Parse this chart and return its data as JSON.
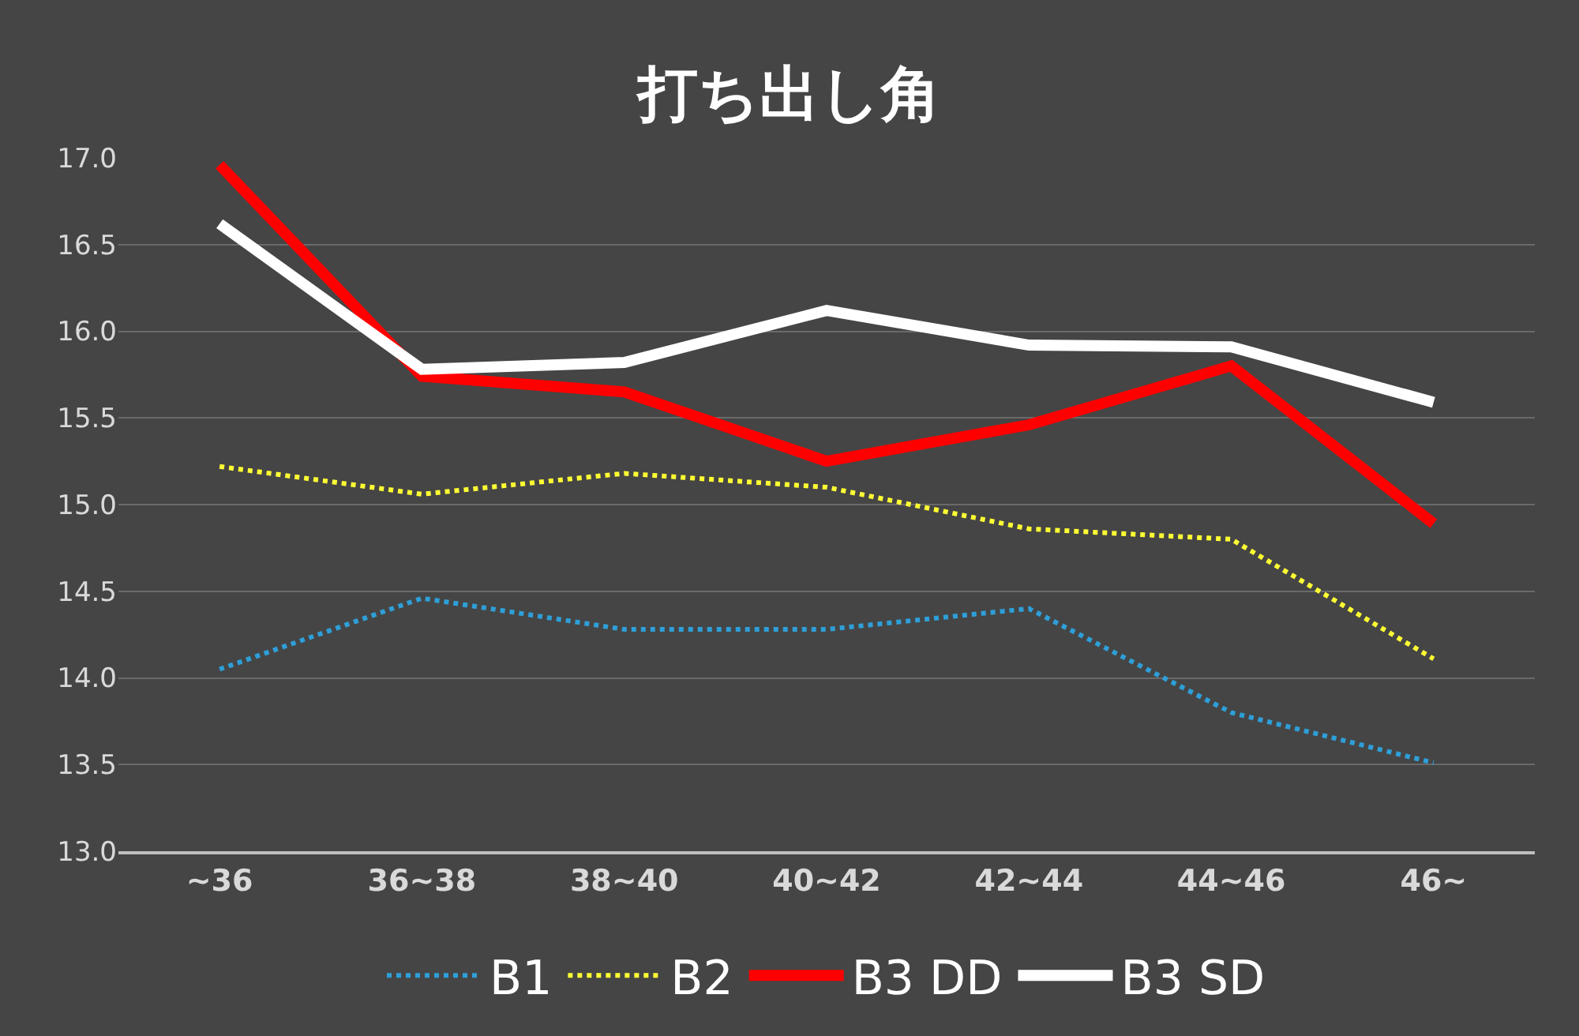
{
  "chart_data": {
    "type": "line",
    "title": "打ち出し角",
    "categories": [
      "~36",
      "36~38",
      "38~40",
      "40~42",
      "42~44",
      "44~46",
      "46~"
    ],
    "series": [
      {
        "name": "B1",
        "color": "#2e9fd8",
        "line_style": "dotted",
        "values": [
          14.05,
          14.46,
          14.28,
          14.28,
          14.4,
          13.8,
          13.51
        ]
      },
      {
        "name": "B2",
        "color": "#ffff33",
        "line_style": "dotted",
        "values": [
          15.22,
          15.06,
          15.18,
          15.1,
          14.86,
          14.8,
          14.11
        ]
      },
      {
        "name": "B3 DD",
        "color": "#ff0000",
        "line_style": "solid",
        "values": [
          16.96,
          15.74,
          15.65,
          15.25,
          15.46,
          15.8,
          14.89
        ]
      },
      {
        "name": "B3 SD",
        "color": "#ffffff",
        "line_style": "solid",
        "values": [
          16.62,
          15.78,
          15.82,
          16.12,
          15.92,
          15.91,
          15.59
        ]
      }
    ],
    "ylim": [
      13.0,
      17.0
    ],
    "yticks": [
      {
        "value": 13,
        "label": "13.0"
      },
      {
        "value": 13.5,
        "label": "13.5"
      },
      {
        "value": 14,
        "label": "14.0"
      },
      {
        "value": 14.5,
        "label": "14.5"
      },
      {
        "value": 15,
        "label": "15.0"
      },
      {
        "value": 15.5,
        "label": "15.5"
      },
      {
        "value": 16,
        "label": "16.0"
      },
      {
        "value": 16.5,
        "label": "16.5"
      },
      {
        "value": 17,
        "label": "17.0"
      }
    ],
    "grid": "y",
    "legend": "bottom",
    "marker": "none"
  }
}
